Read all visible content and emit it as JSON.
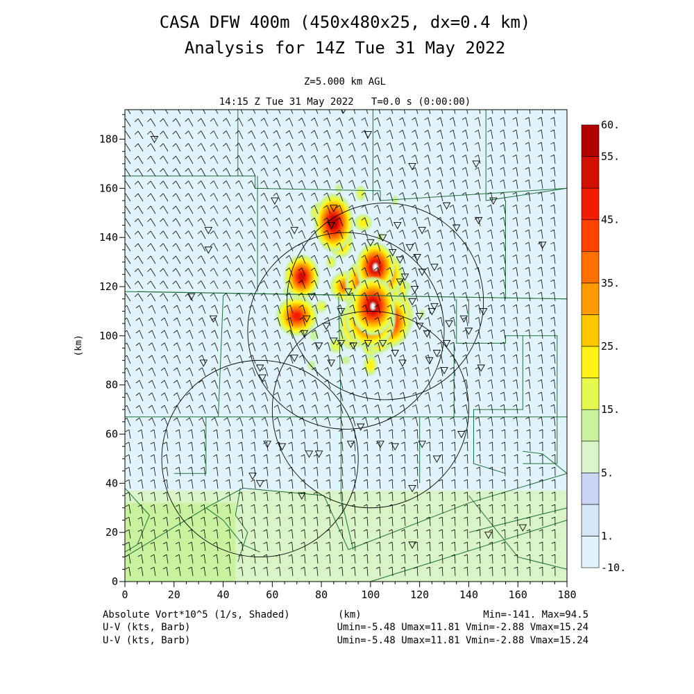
{
  "chart_data": {
    "type": "heatmap",
    "title": "CASA DFW 400m (450x480x25, dx=0.4 km)",
    "subtitle": "Analysis for 14Z Tue 31 May 2022",
    "level_label": "Z=5.000 km AGL",
    "time_label": "14:15 Z Tue 31 May 2022   T=0.0 s (0:00:00)",
    "xlabel": "(km)",
    "ylabel": "(km)",
    "xlim": [
      0,
      180
    ],
    "ylim": [
      0,
      192
    ],
    "x_ticks": [
      "0",
      "20",
      "40",
      "60",
      "80",
      "100",
      "120",
      "140",
      "160",
      "180"
    ],
    "y_ticks": [
      "0",
      "20",
      "40",
      "60",
      "80",
      "100",
      "120",
      "140",
      "160",
      "180"
    ],
    "colorbar": {
      "boundaries": [
        -10,
        1,
        3,
        5,
        10,
        15,
        20,
        25,
        30,
        35,
        40,
        45,
        50,
        55,
        60
      ],
      "labels": [
        {
          "text": "-10.",
          "value": -10
        },
        {
          "text": "1.",
          "value": 1
        },
        {
          "text": "5.",
          "value": 5
        },
        {
          "text": "15.",
          "value": 15
        },
        {
          "text": "25.",
          "value": 25
        },
        {
          "text": "35.",
          "value": 35
        },
        {
          "text": "45.",
          "value": 45
        },
        {
          "text": "55.",
          "value": 55
        },
        {
          "text": "60.",
          "value": 60
        }
      ],
      "colors": [
        "#e2f4fb",
        "#d4e8f8",
        "#cad4f5",
        "#d9f5c8",
        "#c8f29e",
        "#e6fa4e",
        "#fff214",
        "#ffc800",
        "#ff9a00",
        "#ff6e00",
        "#ff4200",
        "#f01e00",
        "#d01000",
        "#b00000"
      ]
    },
    "vorticity_cells": [
      {
        "x": 102,
        "y": 128,
        "v": 60
      },
      {
        "x": 104,
        "y": 125,
        "v": 58
      },
      {
        "x": 100,
        "y": 122,
        "v": 55
      },
      {
        "x": 98,
        "y": 117,
        "v": 50
      },
      {
        "x": 101,
        "y": 112,
        "v": 60
      },
      {
        "x": 100,
        "y": 107,
        "v": 58
      },
      {
        "x": 97,
        "y": 112,
        "v": 45
      },
      {
        "x": 103,
        "y": 118,
        "v": 50
      },
      {
        "x": 108,
        "y": 106,
        "v": 52
      },
      {
        "x": 111,
        "y": 108,
        "v": 48
      },
      {
        "x": 95,
        "y": 105,
        "v": 45
      },
      {
        "x": 103,
        "y": 100,
        "v": 40
      },
      {
        "x": 108,
        "y": 118,
        "v": 40
      },
      {
        "x": 92,
        "y": 102,
        "v": 38
      },
      {
        "x": 85,
        "y": 146,
        "v": 55
      },
      {
        "x": 72,
        "y": 124,
        "v": 50
      },
      {
        "x": 70,
        "y": 108,
        "v": 45
      },
      {
        "x": 90,
        "y": 120,
        "v": 35
      },
      {
        "x": 88,
        "y": 138,
        "v": 30
      },
      {
        "x": 79,
        "y": 150,
        "v": 22
      },
      {
        "x": 97,
        "y": 146,
        "v": 20
      },
      {
        "x": 96,
        "y": 158,
        "v": 15
      },
      {
        "x": 87,
        "y": 160,
        "v": 12
      },
      {
        "x": 84,
        "y": 130,
        "v": 18
      },
      {
        "x": 80,
        "y": 112,
        "v": 15
      },
      {
        "x": 77,
        "y": 100,
        "v": 12
      },
      {
        "x": 86,
        "y": 96,
        "v": 15
      },
      {
        "x": 100,
        "y": 88,
        "v": 20
      },
      {
        "x": 110,
        "y": 100,
        "v": 18
      },
      {
        "x": 104,
        "y": 140,
        "v": 12
      },
      {
        "x": 107,
        "y": 130,
        "v": 20
      },
      {
        "x": 115,
        "y": 120,
        "v": 12
      },
      {
        "x": 121,
        "y": 109,
        "v": 10
      },
      {
        "x": 90,
        "y": 90,
        "v": 12
      },
      {
        "x": 76,
        "y": 88,
        "v": 10
      },
      {
        "x": 66,
        "y": 118,
        "v": 10
      },
      {
        "x": 110,
        "y": 155,
        "v": 10
      },
      {
        "x": 100,
        "y": 96,
        "v": 25
      }
    ],
    "background_regions": [
      {
        "name": "upper",
        "ymin": 37,
        "ymax": 192,
        "value": 0
      },
      {
        "name": "lower",
        "ymin": 0,
        "ymax": 37,
        "value": 6
      },
      {
        "name": "lower-sw",
        "ymin": 0,
        "ymax": 32,
        "xmin": 0,
        "xmax": 45,
        "value": 10
      }
    ],
    "radar_ranges": [
      {
        "cx": 106,
        "cy": 114,
        "r": 40
      },
      {
        "cx": 90,
        "cy": 102,
        "r": 40
      },
      {
        "cx": 100,
        "cy": 70,
        "r": 40
      },
      {
        "cx": 55,
        "cy": 50,
        "r": 40
      }
    ],
    "stations": [
      [
        12,
        180
      ],
      [
        89,
        192
      ],
      [
        99,
        182
      ],
      [
        117,
        169
      ],
      [
        143,
        170
      ],
      [
        150,
        155
      ],
      [
        131,
        153
      ],
      [
        61,
        155
      ],
      [
        69,
        143
      ],
      [
        84,
        145
      ],
      [
        85,
        152
      ],
      [
        111,
        145
      ],
      [
        121,
        143
      ],
      [
        135,
        144
      ],
      [
        144,
        147
      ],
      [
        170,
        137
      ],
      [
        34,
        143
      ],
      [
        34,
        135
      ],
      [
        100,
        138
      ],
      [
        105,
        140
      ],
      [
        116,
        136
      ],
      [
        119,
        132
      ],
      [
        121,
        126
      ],
      [
        126,
        128
      ],
      [
        109,
        134
      ],
      [
        112,
        131
      ],
      [
        114,
        124
      ],
      [
        112,
        122
      ],
      [
        118,
        119
      ],
      [
        117,
        114
      ],
      [
        120,
        108
      ],
      [
        125,
        110
      ],
      [
        126,
        112
      ],
      [
        120,
        104
      ],
      [
        123,
        101
      ],
      [
        131,
        97
      ],
      [
        132,
        105
      ],
      [
        138,
        107
      ],
      [
        140,
        102
      ],
      [
        146,
        110
      ],
      [
        91,
        118
      ],
      [
        88,
        110
      ],
      [
        76,
        116
      ],
      [
        82,
        104
      ],
      [
        79,
        96
      ],
      [
        85,
        98
      ],
      [
        88,
        97
      ],
      [
        74,
        107
      ],
      [
        73,
        101
      ],
      [
        69,
        91
      ],
      [
        84,
        89
      ],
      [
        93,
        96
      ],
      [
        99,
        97
      ],
      [
        105,
        97
      ],
      [
        110,
        93
      ],
      [
        113,
        89
      ],
      [
        124,
        90
      ],
      [
        127,
        93
      ],
      [
        130,
        86
      ],
      [
        145,
        87
      ],
      [
        27,
        116
      ],
      [
        36,
        107
      ],
      [
        32,
        89
      ],
      [
        55,
        87
      ],
      [
        56,
        83
      ],
      [
        58,
        56
      ],
      [
        64,
        55
      ],
      [
        75,
        52
      ],
      [
        79,
        52
      ],
      [
        92,
        56
      ],
      [
        96,
        63
      ],
      [
        104,
        56
      ],
      [
        110,
        55
      ],
      [
        121,
        56
      ],
      [
        127,
        50
      ],
      [
        137,
        60
      ],
      [
        55,
        40
      ],
      [
        52,
        43
      ],
      [
        72,
        35
      ],
      [
        117,
        38
      ],
      [
        117,
        15
      ],
      [
        148,
        19
      ],
      [
        162,
        22
      ]
    ],
    "wind": {
      "umin": -5.48,
      "umax": 11.81,
      "vmin": -2.88,
      "vmax": 15.24
    }
  },
  "footer": {
    "field_label": "Absolute Vort*10^5 (1/s, Shaded)",
    "km_label": "(km)",
    "minmax": "Min=-141. Max=94.5",
    "barb1_label": "U-V (kts, Barb)",
    "barb1_stats": "Umin=-5.48 Umax=11.81 Vmin=-2.88 Vmax=15.24",
    "barb2_label": "U-V (kts, Barb)",
    "barb2_stats": "Umin=-5.48 Umax=11.81 Vmin=-2.88 Vmax=15.24"
  },
  "colors": {
    "county_lines": "#1e6e3a",
    "range_rings": "#000000",
    "barbs": "#000000"
  }
}
